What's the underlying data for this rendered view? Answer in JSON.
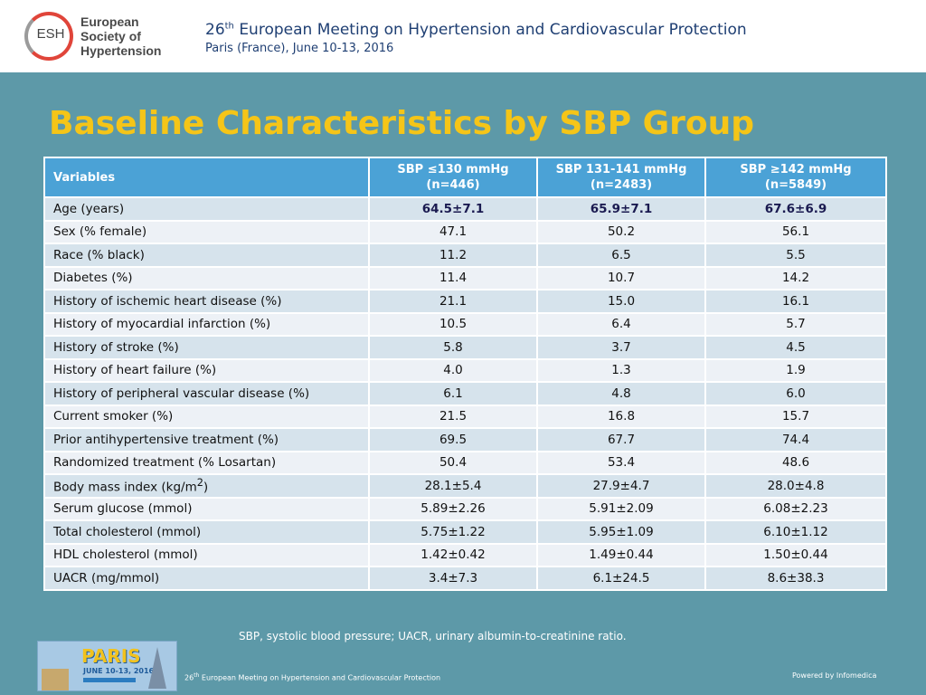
{
  "header": {
    "org_logo_text": "ESH",
    "org_line1": "European",
    "org_line2": "Society of",
    "org_line3": "Hypertension",
    "meeting_ordinal": "26",
    "meeting_ordinal_suffix": "th",
    "meeting_title": "European Meeting on Hypertension and Cardiovascular Protection",
    "meeting_location": "Paris (France), June 10-13, 2016"
  },
  "slide": {
    "title": "Baseline Characteristics by SBP Group"
  },
  "table": {
    "var_header": "Variables",
    "groups": [
      {
        "label": "SBP ≤130 mmHg",
        "n": "(n=446)"
      },
      {
        "label": "SBP 131-141 mmHg",
        "n": "(n=2483)"
      },
      {
        "label": "SBP ≥142 mmHg",
        "n": "(n=5849)"
      }
    ],
    "rows": [
      {
        "label": "Age (years)",
        "values": [
          "64.5±7.1",
          "65.9±7.1",
          "67.6±6.9"
        ]
      },
      {
        "label": "Sex (% female)",
        "values": [
          "47.1",
          "50.2",
          "56.1"
        ]
      },
      {
        "label": "Race (% black)",
        "values": [
          "11.2",
          "6.5",
          "5.5"
        ]
      },
      {
        "label": "Diabetes (%)",
        "values": [
          "11.4",
          "10.7",
          "14.2"
        ]
      },
      {
        "label": "History of ischemic heart disease (%)",
        "values": [
          "21.1",
          "15.0",
          "16.1"
        ]
      },
      {
        "label": "History of myocardial infarction (%)",
        "values": [
          "10.5",
          "6.4",
          "5.7"
        ]
      },
      {
        "label": "History of stroke (%)",
        "values": [
          "5.8",
          "3.7",
          "4.5"
        ]
      },
      {
        "label": "History of heart failure (%)",
        "values": [
          "4.0",
          "1.3",
          "1.9"
        ]
      },
      {
        "label": "History of peripheral vascular disease (%)",
        "values": [
          "6.1",
          "4.8",
          "6.0"
        ]
      },
      {
        "label": "Current smoker (%)",
        "values": [
          "21.5",
          "16.8",
          "15.7"
        ]
      },
      {
        "label": "Prior antihypertensive treatment (%)",
        "values": [
          "69.5",
          "67.7",
          "74.4"
        ]
      },
      {
        "label": "Randomized treatment (% Losartan)",
        "values": [
          "50.4",
          "53.4",
          "48.6"
        ]
      },
      {
        "label": "Body mass index (kg/m",
        "label_sup": "2",
        "label_tail": ")",
        "values": [
          "28.1±5.4",
          "27.9±4.7",
          "28.0±4.8"
        ]
      },
      {
        "label": "Serum glucose (mmol)",
        "values": [
          "5.89±2.26",
          "5.91±2.09",
          "6.08±2.23"
        ]
      },
      {
        "label": "Total cholesterol (mmol)",
        "values": [
          "5.75±1.22",
          "5.95±1.09",
          "6.10±1.12"
        ]
      },
      {
        "label": "HDL cholesterol (mmol)",
        "values": [
          "1.42±0.42",
          "1.49±0.44",
          "1.50±0.44"
        ]
      },
      {
        "label": "UACR (mg/mmol)",
        "values": [
          "3.4±7.3",
          "6.1±24.5",
          "8.6±38.3"
        ]
      }
    ]
  },
  "footnote": "SBP, systolic blood pressure; UACR, urinary albumin-to-creatinine ratio.",
  "banner": {
    "city": "PARIS",
    "dates": "JUNE 10-13, 2016"
  },
  "footer": {
    "meeting_ordinal": "26",
    "meeting_ordinal_suffix": "th",
    "meeting_title": "European Meeting on Hypertension and Cardiovascular Protection",
    "powered_by": "Powered by Infomedica"
  }
}
